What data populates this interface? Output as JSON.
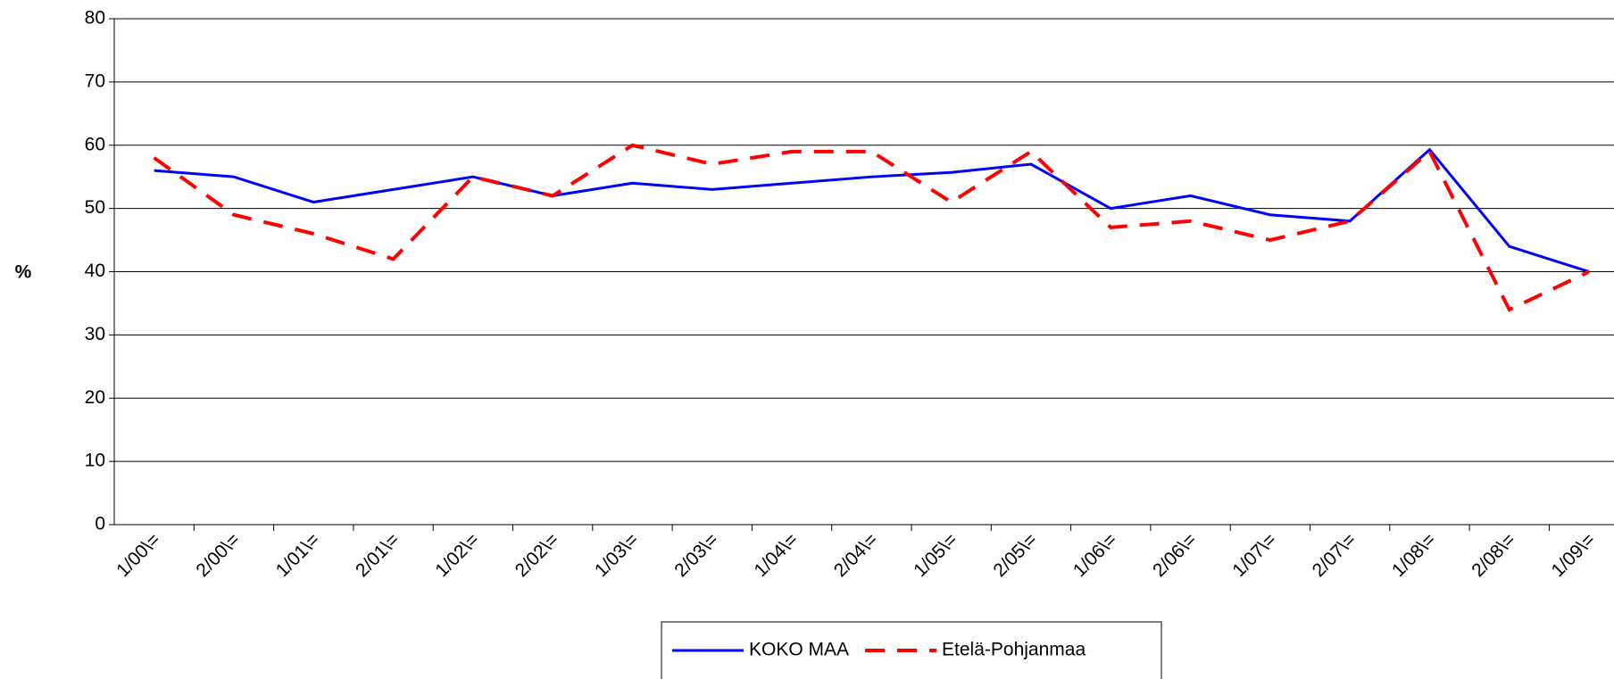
{
  "chart_data": {
    "type": "line",
    "y_label": "%",
    "categories": [
      "1/00\\=",
      "2/00\\=",
      "1/01\\=",
      "2/01\\=",
      "1/02\\=",
      "2/02\\=",
      "1/03\\=",
      "2/03\\=",
      "1/04\\=",
      "2/04\\=",
      "1/05\\=",
      "2/05\\=",
      "1/06\\=",
      "2/06\\=",
      "1/07\\=",
      "2/07\\=",
      "1/08\\=",
      "2/08\\=",
      "1/09\\="
    ],
    "series": [
      {
        "name": "KOKO MAA",
        "color": "#0000ff",
        "values": [
          56,
          55,
          51,
          53,
          55,
          52,
          54,
          53,
          54,
          55,
          55.7,
          57,
          50,
          52,
          49,
          48,
          59.3,
          44,
          40
        ]
      },
      {
        "name": "Etelä-Pohjanmaa",
        "color": "#ff0000",
        "dashed": true,
        "values": [
          58,
          49,
          46,
          42,
          55,
          52,
          60,
          57,
          59,
          59,
          51,
          59,
          47,
          48,
          45,
          48,
          59,
          34,
          40
        ]
      }
    ],
    "ylim": [
      0,
      80
    ],
    "yticks": [
      0,
      10,
      20,
      30,
      40,
      50,
      60,
      70,
      80
    ],
    "grid": true,
    "legend": "bottom"
  }
}
